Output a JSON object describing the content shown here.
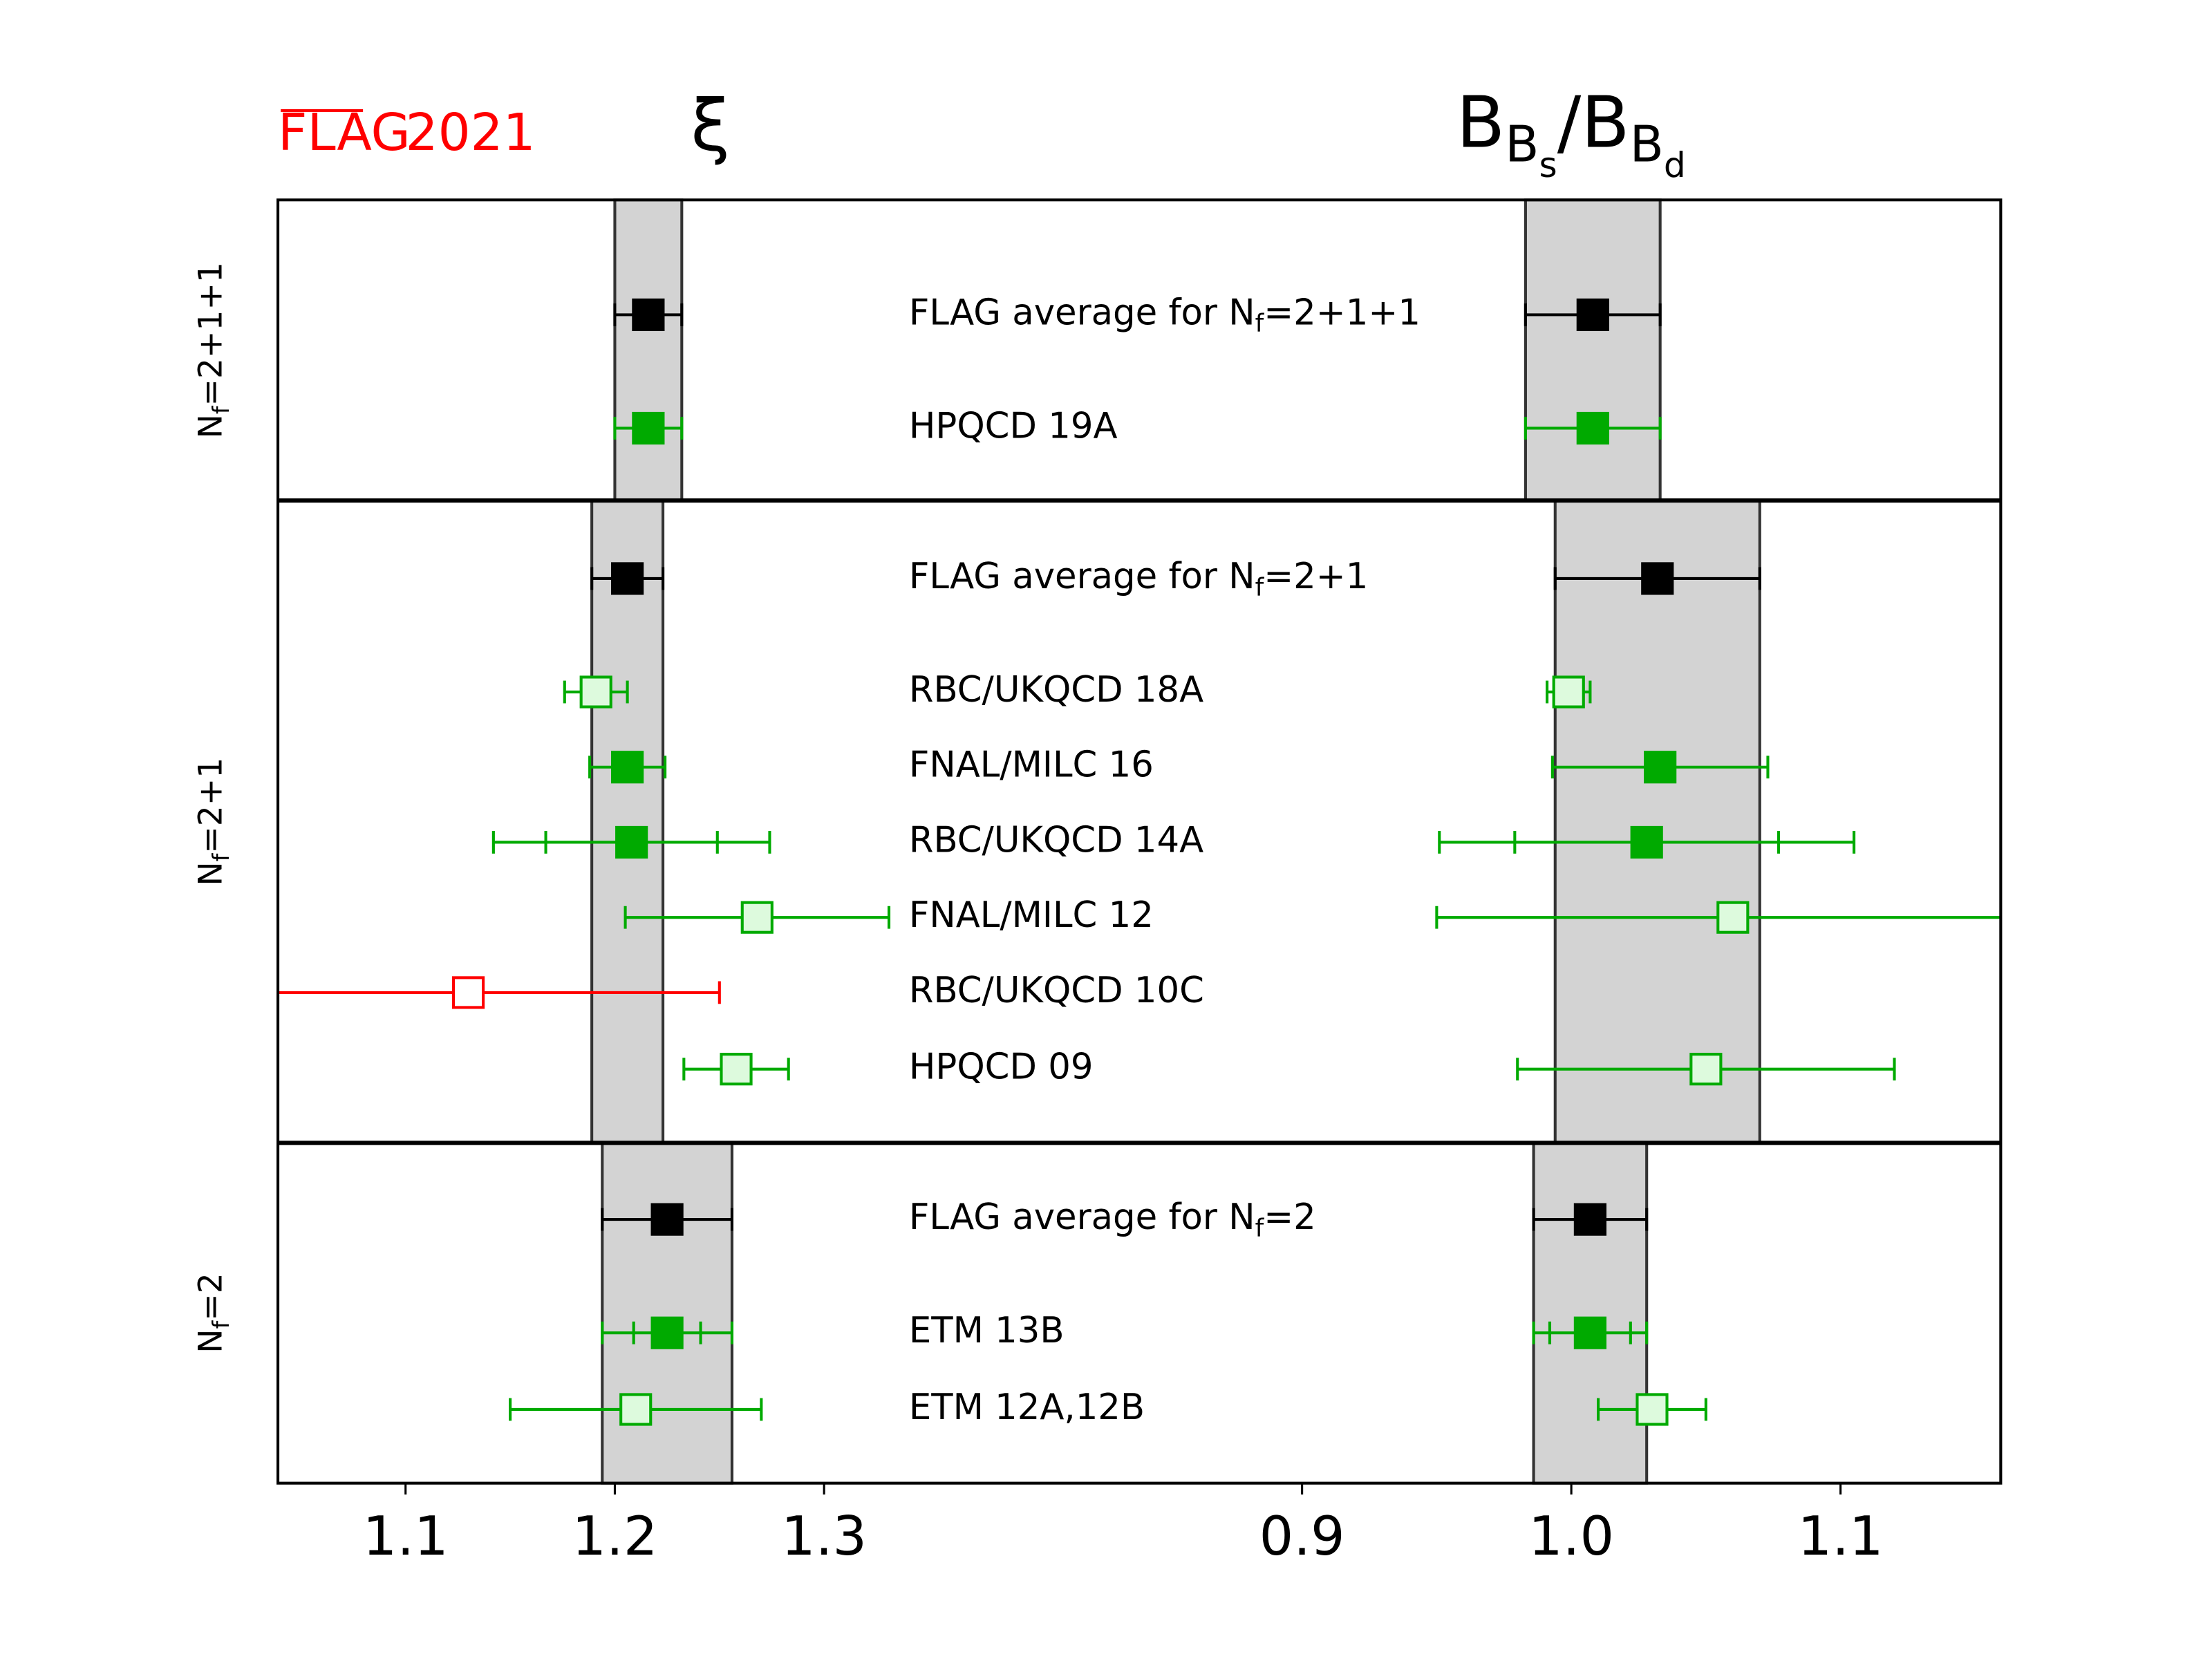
{
  "logo": "FLAG",
  "year": "2021",
  "chart_data": [
    {
      "type": "errorbar",
      "title": "ξ",
      "categories": [
        "FLAG average for Nf=2+1+1",
        "HPQCD 19A",
        "FLAG average for Nf=2+1",
        "RBC/UKQCD 18A",
        "FNAL/MILC 16",
        "RBC/UKQCD 14A",
        "FNAL/MILC 12",
        "RBC/UKQCD 10C",
        "HPQCD 09",
        "FLAG average for Nf=2",
        "ETM 13B",
        "ETM 12A,12B"
      ],
      "groups": [
        "Nf=2+1+1",
        "Nf=2+1",
        "Nf=2"
      ],
      "values": [
        1.216,
        1.216,
        1.206,
        1.191,
        1.206,
        1.208,
        1.268,
        1.13,
        1.258,
        1.225,
        1.225,
        1.21
      ],
      "errors": [
        0.016,
        0.016,
        0.017,
        0.015,
        0.018,
        0.066,
        0.063,
        0.12,
        0.025,
        0.031,
        0.031,
        0.06
      ],
      "stat_errors": [
        null,
        null,
        null,
        null,
        null,
        0.041,
        null,
        null,
        null,
        null,
        0.016,
        null
      ],
      "markers": [
        "average",
        "filled",
        "average",
        "open",
        "filled",
        "filled",
        "open",
        "open-red",
        "open",
        "average",
        "filled",
        "open"
      ],
      "marker_styles": {
        "average": {
          "face": "#000000",
          "edge": "#000000"
        },
        "filled": {
          "face": "#00aa00",
          "edge": "#00aa00"
        },
        "open": {
          "face": "#ddfadd",
          "edge": "#00aa00"
        },
        "open-red": {
          "face": "#ffffff",
          "edge": "#ff0000"
        }
      },
      "band_color": "#d3d3d3",
      "xlim": [
        1.039,
        1.39
      ],
      "xticks": [
        1.1,
        1.2,
        1.3
      ]
    },
    {
      "type": "errorbar",
      "title": "BBs/BBd",
      "values": [
        1.008,
        1.008,
        1.032,
        0.999,
        1.033,
        1.028,
        1.06,
        null,
        1.05,
        1.007,
        1.007,
        1.03
      ],
      "errors": [
        0.025,
        0.025,
        0.038,
        0.008,
        0.04,
        0.077,
        0.11,
        null,
        0.07,
        0.021,
        0.021,
        0.02
      ],
      "stat_errors": [
        null,
        null,
        null,
        null,
        null,
        0.049,
        null,
        null,
        null,
        null,
        0.015,
        null
      ],
      "markers": [
        "average",
        "filled",
        "average",
        "open",
        "filled",
        "filled",
        "open",
        null,
        "open",
        "average",
        "filled",
        "open"
      ],
      "marker_styles": {
        "average": {
          "face": "#000000",
          "edge": "#000000"
        },
        "filled": {
          "face": "#00aa00",
          "edge": "#00aa00"
        },
        "open": {
          "face": "#ddfadd",
          "edge": "#00aa00"
        }
      },
      "band_color": "#d3d3d3",
      "xlim": [
        0.883,
        1.1595
      ],
      "xticks": [
        0.9,
        {
          "value": 1.0,
          "label": "1.0"
        },
        1.1
      ]
    }
  ]
}
